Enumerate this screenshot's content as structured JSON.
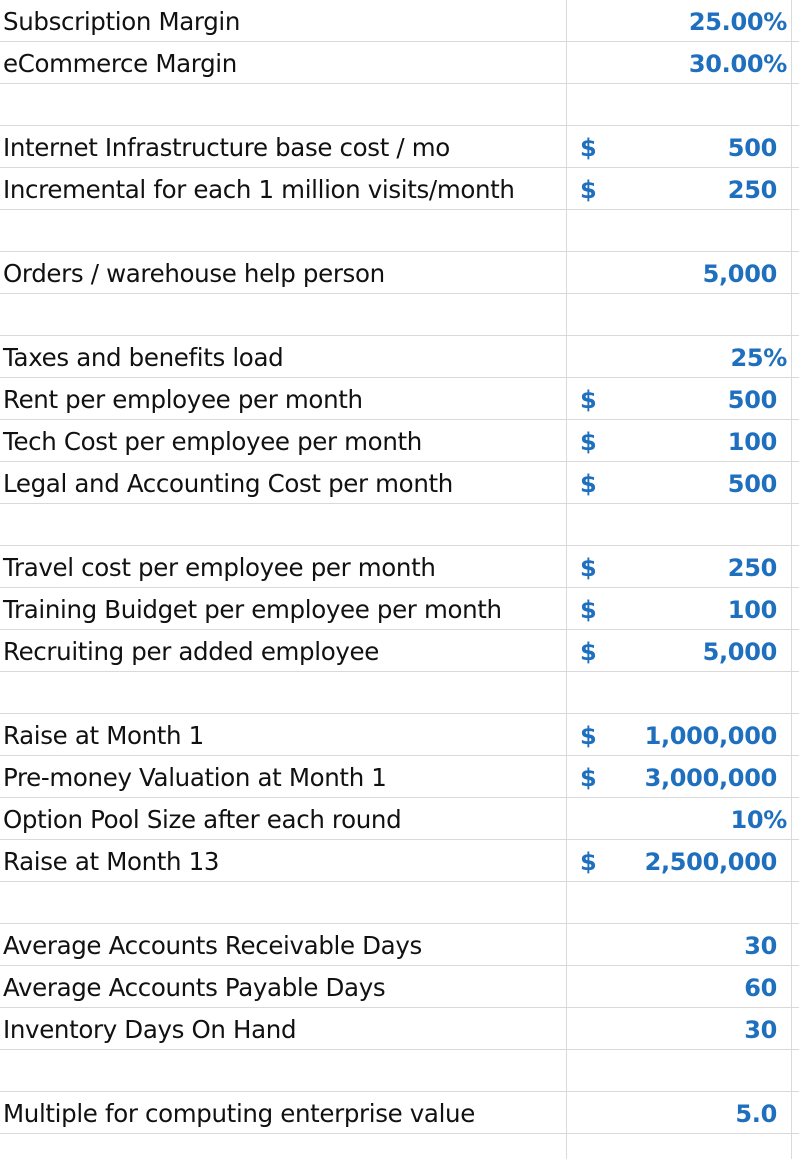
{
  "rows": [
    {
      "label": "Subscription Margin",
      "currency": "",
      "value": "25.00%"
    },
    {
      "label": "eCommerce Margin",
      "currency": "",
      "value": "30.00%"
    },
    {
      "label": "",
      "currency": "",
      "value": ""
    },
    {
      "label": "Internet Infrastructure base cost / mo",
      "currency": "$",
      "value": "500"
    },
    {
      "label": "Incremental for each 1 million visits/month",
      "currency": "$",
      "value": "250"
    },
    {
      "label": "",
      "currency": "",
      "value": ""
    },
    {
      "label": "Orders / warehouse help person",
      "currency": "",
      "value": "5,000"
    },
    {
      "label": "",
      "currency": "",
      "value": ""
    },
    {
      "label": "Taxes and benefits load",
      "currency": "",
      "value": "25%"
    },
    {
      "label": "Rent per employee per month",
      "currency": "$",
      "value": "500"
    },
    {
      "label": "Tech Cost per employee per month",
      "currency": "$",
      "value": "100"
    },
    {
      "label": "Legal and Accounting Cost per month",
      "currency": "$",
      "value": "500"
    },
    {
      "label": "",
      "currency": "",
      "value": ""
    },
    {
      "label": "Travel cost per employee per month",
      "currency": "$",
      "value": "250"
    },
    {
      "label": "Training Buidget per employee per month",
      "currency": "$",
      "value": "100"
    },
    {
      "label": "Recruiting per added employee",
      "currency": "$",
      "value": "5,000"
    },
    {
      "label": "",
      "currency": "",
      "value": ""
    },
    {
      "label": "Raise at Month 1",
      "currency": "$",
      "value": "1,000,000"
    },
    {
      "label": "Pre-money Valuation at Month 1",
      "currency": "$",
      "value": "3,000,000"
    },
    {
      "label": "Option Pool Size after each round",
      "currency": "",
      "value": "10%"
    },
    {
      "label": "Raise at Month 13",
      "currency": "$",
      "value": "2,500,000"
    },
    {
      "label": "",
      "currency": "",
      "value": ""
    },
    {
      "label": "Average Accounts Receivable Days",
      "currency": "",
      "value": "30"
    },
    {
      "label": "Average Accounts Payable Days",
      "currency": "",
      "value": "60"
    },
    {
      "label": "Inventory Days On Hand",
      "currency": "",
      "value": "30"
    },
    {
      "label": "",
      "currency": "",
      "value": ""
    },
    {
      "label": "Multiple for computing enterprise value",
      "currency": "",
      "value": "5.0"
    }
  ],
  "colors": {
    "label": "#111111",
    "value": "#1f6fbf",
    "gridline": "#d9d9d9"
  }
}
